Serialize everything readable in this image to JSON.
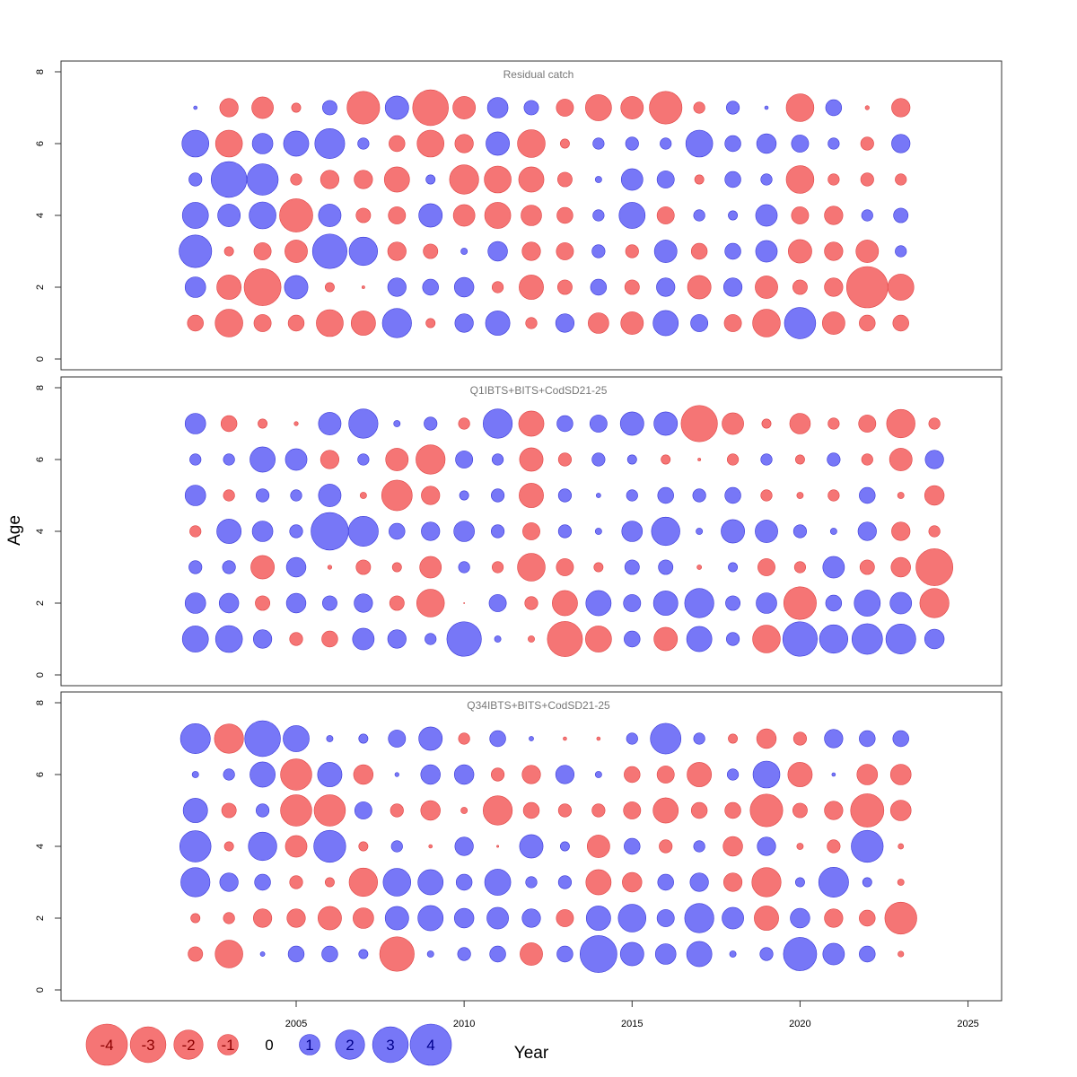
{
  "chart_data": {
    "type": "bubble",
    "xlabel": "Year",
    "ylabel": "Age",
    "xlim": [
      1998,
      2026
    ],
    "ylim": [
      0,
      8
    ],
    "x_ticks": [
      2005,
      2010,
      2015,
      2020,
      2025
    ],
    "y_ticks": [
      0,
      2,
      4,
      6,
      8
    ],
    "colors": {
      "positive": "#7777f7",
      "positive_edge": "#3a3ad8",
      "negative": "#f57575",
      "negative_edge": "#e04545"
    },
    "ages": [
      1,
      2,
      3,
      4,
      5,
      6,
      7
    ],
    "legend": [
      {
        "value": -4,
        "label": "-4"
      },
      {
        "value": -3,
        "label": "-3"
      },
      {
        "value": -2,
        "label": "-2"
      },
      {
        "value": -1,
        "label": "-1"
      },
      {
        "value": 0,
        "label": "0"
      },
      {
        "value": 1,
        "label": "1"
      },
      {
        "value": 2,
        "label": "2"
      },
      {
        "value": 3,
        "label": "3"
      },
      {
        "value": 4,
        "label": "4"
      }
    ],
    "panels": [
      {
        "title": "Residual catch",
        "years": [
          2002,
          2003,
          2004,
          2005,
          2006,
          2007,
          2008,
          2009,
          2010,
          2011,
          2012,
          2013,
          2014,
          2015,
          2016,
          2017,
          2018,
          2019,
          2020,
          2021,
          2022,
          2023
        ],
        "residuals": {
          "1": [
            -0.6,
            -1.8,
            -0.7,
            -0.6,
            -1.7,
            -1.4,
            2.0,
            -0.2,
            0.8,
            1.4,
            -0.3,
            0.8,
            -1.0,
            -1.2,
            1.5,
            0.7,
            -0.7,
            -1.8,
            2.3,
            -1.2,
            -0.6,
            -0.6
          ],
          "2": [
            1.0,
            -1.4,
            -3.2,
            1.3,
            -0.2,
            -0.02,
            0.8,
            0.6,
            0.9,
            -0.3,
            -1.4,
            -0.5,
            0.6,
            -0.5,
            0.8,
            -1.3,
            0.8,
            -1.2,
            -0.5,
            -0.8,
            -4.0,
            -1.6
          ],
          "3": [
            2.5,
            -0.2,
            -0.7,
            -1.2,
            2.8,
            1.9,
            -0.8,
            -0.5,
            0.1,
            0.9,
            -0.8,
            -0.7,
            0.4,
            -0.4,
            1.2,
            -0.6,
            0.6,
            1.1,
            -1.3,
            -0.8,
            -1.2,
            0.3
          ],
          "4": [
            1.6,
            1.2,
            1.7,
            -2.6,
            1.2,
            -0.5,
            -0.7,
            1.3,
            -1.1,
            -1.6,
            -1.0,
            -0.6,
            0.3,
            1.6,
            -0.7,
            0.3,
            0.2,
            1.1,
            -0.7,
            -0.8,
            0.3,
            0.5
          ],
          "5": [
            0.4,
            3.0,
            2.3,
            -0.3,
            -0.8,
            -0.8,
            -1.5,
            0.2,
            -2.0,
            -1.7,
            -1.5,
            -0.5,
            0.1,
            1.1,
            0.7,
            -0.2,
            0.6,
            0.3,
            -1.8,
            -0.3,
            -0.4,
            -0.3
          ],
          "6": [
            1.7,
            -1.7,
            1.0,
            1.5,
            2.1,
            0.3,
            -0.6,
            -1.7,
            -0.8,
            1.3,
            -1.8,
            -0.2,
            0.3,
            0.4,
            0.3,
            1.7,
            0.6,
            0.9,
            0.7,
            0.3,
            -0.4,
            0.8
          ],
          "7": [
            0.03,
            -0.8,
            -1.1,
            -0.2,
            0.5,
            -2.5,
            1.3,
            -3.0,
            -1.2,
            1.0,
            0.5,
            -0.7,
            -1.6,
            -1.2,
            -2.5,
            -0.3,
            0.4,
            0.03,
            -1.8,
            0.6,
            -0.04,
            -0.8
          ]
        }
      },
      {
        "title": "Q1IBTS+BITS+CodSD21-25",
        "years": [
          2002,
          2003,
          2004,
          2005,
          2006,
          2007,
          2008,
          2009,
          2010,
          2011,
          2012,
          2013,
          2014,
          2015,
          2016,
          2017,
          2018,
          2019,
          2020,
          2021,
          2022,
          2023,
          2024
        ],
        "residuals": {
          "1": [
            1.6,
            1.7,
            0.8,
            -0.4,
            -0.6,
            1.1,
            0.8,
            0.3,
            2.8,
            0.1,
            -0.1,
            -2.9,
            -1.6,
            0.6,
            -1.3,
            1.5,
            0.4,
            -1.8,
            2.8,
            1.9,
            2.2,
            2.1,
            0.9
          ],
          "2": [
            1.0,
            0.9,
            -0.5,
            0.9,
            0.5,
            0.8,
            -0.5,
            -1.8,
            -0.001,
            0.7,
            -0.4,
            -1.5,
            1.5,
            0.7,
            1.4,
            2.0,
            0.5,
            1.0,
            -2.5,
            0.6,
            1.6,
            1.1,
            -2.0
          ],
          "3": [
            0.4,
            0.4,
            -1.3,
            0.9,
            -0.04,
            -0.5,
            -0.2,
            -1.1,
            0.3,
            -0.3,
            -1.8,
            -0.7,
            -0.2,
            0.5,
            0.5,
            -0.05,
            0.2,
            -0.7,
            -0.3,
            1.1,
            -0.5,
            -0.9,
            -3.2
          ],
          "4": [
            -0.3,
            1.4,
            1.0,
            0.4,
            3.3,
            2.1,
            0.6,
            0.8,
            1.0,
            0.4,
            -0.7,
            0.4,
            0.1,
            1.0,
            1.9,
            0.1,
            1.3,
            1.2,
            0.4,
            0.1,
            0.8,
            -0.8,
            -0.3
          ],
          "5": [
            1.0,
            -0.3,
            0.4,
            0.3,
            1.2,
            -0.1,
            -2.2,
            -0.8,
            0.2,
            0.4,
            -1.4,
            0.4,
            0.05,
            0.3,
            0.6,
            0.4,
            0.6,
            -0.3,
            -0.1,
            -0.3,
            0.6,
            -0.1,
            -0.9
          ],
          "6": [
            0.3,
            0.3,
            1.5,
            1.1,
            -0.8,
            0.3,
            -1.2,
            -2.0,
            0.7,
            0.3,
            -1.3,
            -0.4,
            0.4,
            0.2,
            -0.2,
            -0.02,
            -0.3,
            0.3,
            -0.2,
            0.4,
            -0.3,
            -1.2,
            0.8
          ],
          "7": [
            1.0,
            -0.6,
            -0.2,
            -0.04,
            1.2,
            2.0,
            0.1,
            0.4,
            -0.3,
            2.0,
            -1.5,
            0.6,
            0.7,
            1.3,
            1.3,
            -3.1,
            -1.1,
            -0.2,
            -1.0,
            -0.3,
            -0.7,
            -1.9,
            -0.3
          ]
        }
      },
      {
        "title": "Q34IBTS+BITS+CodSD21-25",
        "years": [
          2002,
          2003,
          2004,
          2005,
          2006,
          2007,
          2008,
          2009,
          2010,
          2011,
          2012,
          2013,
          2014,
          2015,
          2016,
          2017,
          2018,
          2019,
          2020,
          2021,
          2022,
          2023
        ],
        "residuals": {
          "1": [
            -0.5,
            -1.8,
            0.05,
            0.6,
            0.6,
            0.2,
            -2.8,
            0.1,
            0.4,
            0.6,
            -1.2,
            0.6,
            3.2,
            1.3,
            1.0,
            1.5,
            0.1,
            0.4,
            2.6,
            1.1,
            0.6,
            -0.08
          ],
          "2": [
            -0.2,
            -0.3,
            -0.8,
            -0.8,
            -1.3,
            -1.0,
            1.3,
            1.5,
            0.9,
            1.1,
            0.8,
            -0.7,
            1.4,
            1.8,
            0.7,
            2.0,
            1.1,
            -1.4,
            0.9,
            -0.8,
            -0.6,
            -2.4
          ],
          "3": [
            2.0,
            0.8,
            0.6,
            -0.4,
            -0.2,
            -1.9,
            1.8,
            1.5,
            0.6,
            1.6,
            0.3,
            0.4,
            -1.5,
            -0.9,
            0.6,
            0.8,
            -0.8,
            -2.0,
            0.2,
            2.1,
            0.2,
            -0.1
          ],
          "4": [
            2.3,
            -0.2,
            1.9,
            -1.1,
            2.4,
            -0.2,
            0.3,
            -0.03,
            0.8,
            -0.01,
            1.3,
            0.2,
            -1.2,
            0.6,
            -0.4,
            0.3,
            -0.9,
            0.8,
            -0.1,
            -0.4,
            2.4,
            -0.07
          ],
          "5": [
            1.4,
            -0.5,
            0.4,
            -2.3,
            -2.3,
            0.7,
            -0.4,
            -0.9,
            -0.1,
            -2.0,
            -0.6,
            -0.4,
            -0.4,
            -0.7,
            -1.5,
            -0.6,
            -0.6,
            -2.5,
            -0.5,
            -0.8,
            -2.6,
            -1.0
          ],
          "6": [
            0.1,
            0.3,
            1.5,
            -2.3,
            1.4,
            -0.9,
            0.04,
            0.9,
            0.9,
            -0.4,
            -0.8,
            0.8,
            0.1,
            -0.6,
            -0.7,
            -1.4,
            0.3,
            1.7,
            -1.4,
            0.03,
            -1.0,
            -1.0
          ],
          "7": [
            2.1,
            -2.0,
            3.0,
            1.6,
            0.1,
            0.2,
            0.7,
            1.3,
            -0.3,
            0.6,
            0.05,
            -0.03,
            -0.03,
            0.3,
            2.2,
            0.3,
            -0.2,
            -0.9,
            -0.4,
            0.8,
            0.6,
            0.6
          ]
        }
      }
    ]
  }
}
